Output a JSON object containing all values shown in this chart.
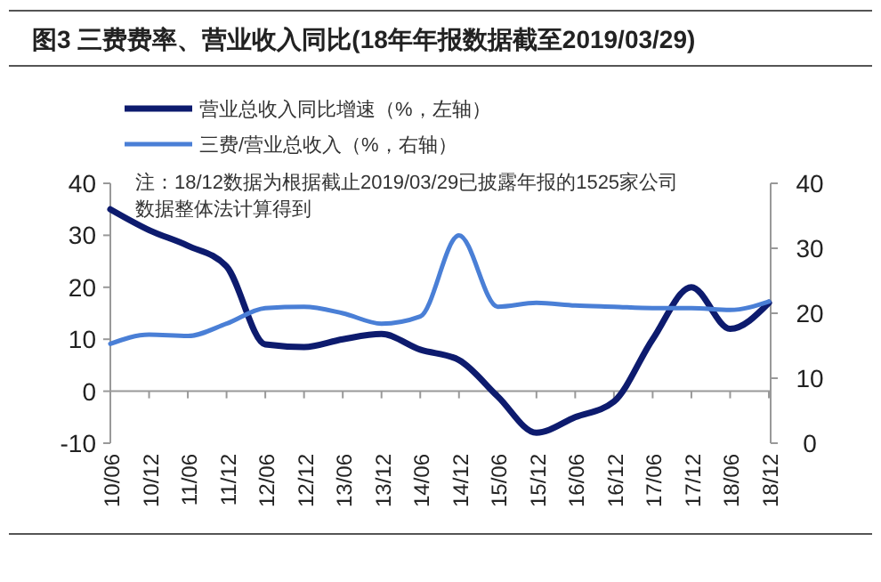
{
  "chart_data": {
    "type": "line",
    "title": "图3  三费费率、营业收入同比(18年年报数据截至2019/03/29)",
    "categories": [
      "10/06",
      "10/12",
      "11/06",
      "11/12",
      "12/06",
      "12/12",
      "13/06",
      "13/12",
      "14/06",
      "14/12",
      "15/06",
      "15/12",
      "16/06",
      "16/12",
      "17/06",
      "17/12",
      "18/06",
      "18/12"
    ],
    "series": [
      {
        "name": "营业总收入同比增速（%，左轴）",
        "color": "#0d1b6e",
        "values": [
          35,
          31,
          28,
          24,
          9,
          8.5,
          10,
          11,
          8,
          6,
          -1,
          -8,
          -5,
          -2,
          10,
          20,
          12,
          17
        ]
      },
      {
        "name": "三费/营业总收入（%，右轴）",
        "color": "#4a7fd6",
        "axis": "y2",
        "values": [
          15.3,
          16.7,
          16.5,
          18.4,
          20.8,
          21,
          20,
          18.4,
          19.5,
          32,
          21,
          21.6,
          21.2,
          21,
          20.8,
          20.8,
          20.5,
          21.8
        ]
      }
    ],
    "ylim": [
      -10,
      40
    ],
    "yticks": [
      -10,
      0,
      10,
      20,
      30,
      40
    ],
    "y2lim": [
      0,
      40
    ],
    "y2ticks": [
      0,
      10,
      20,
      30,
      40
    ],
    "legend": "top",
    "annotations": [
      "注：18/12数据为根据截止2019/03/29已披露年报的1525家公司",
      "数据整体法计算得到"
    ]
  }
}
